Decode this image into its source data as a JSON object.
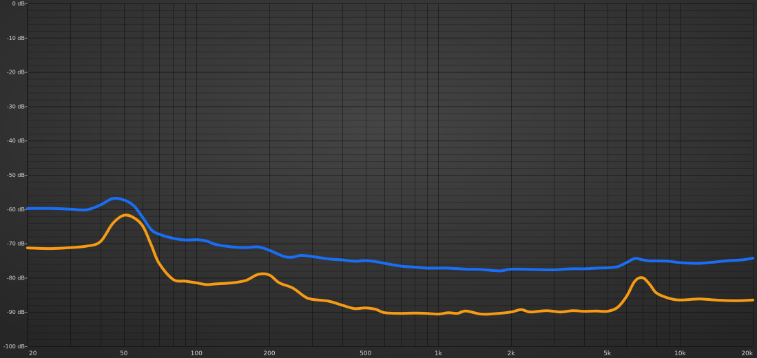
{
  "chart_data": {
    "type": "line",
    "xscale": "log",
    "xlim": [
      20,
      20000
    ],
    "ylim": [
      -100,
      0
    ],
    "grid": true,
    "y_ticks": [
      0,
      -10,
      -20,
      -30,
      -40,
      -50,
      -60,
      -70,
      -80,
      -90,
      -100
    ],
    "y_tick_labels": [
      "0 dB",
      "-10 dB",
      "-20 dB",
      "-30 dB",
      "-40 dB",
      "-50 dB",
      "-60 dB",
      "-70 dB",
      "-80 dB",
      "-90 dB",
      "-100 dB"
    ],
    "x_ticks": [
      20,
      50,
      100,
      200,
      500,
      1000,
      2000,
      5000,
      10000,
      20000
    ],
    "x_tick_labels": [
      "20",
      "50",
      "100",
      "200",
      "500",
      "1k",
      "2k",
      "5k",
      "10k",
      "20k"
    ],
    "series": [
      {
        "color": "#1a6ef5",
        "x": [
          20,
          25,
          30,
          35,
          40,
          45,
          50,
          55,
          60,
          65,
          70,
          80,
          90,
          100,
          110,
          120,
          140,
          160,
          180,
          200,
          230,
          250,
          270,
          300,
          350,
          400,
          450,
          500,
          550,
          600,
          700,
          800,
          900,
          1000,
          1100,
          1300,
          1500,
          1800,
          2000,
          2500,
          3000,
          3500,
          4000,
          4500,
          5000,
          5500,
          6000,
          6500,
          7000,
          7500,
          8000,
          9000,
          10000,
          12000,
          14000,
          16000,
          18000,
          20000
        ],
        "y": [
          -59.8,
          -59.8,
          -60.0,
          -60.2,
          -58.8,
          -56.9,
          -57.3,
          -59.0,
          -62.5,
          -66.0,
          -67.3,
          -68.5,
          -69.0,
          -68.9,
          -69.3,
          -70.3,
          -71.0,
          -71.2,
          -71.0,
          -72.0,
          -73.8,
          -74.0,
          -73.5,
          -73.8,
          -74.5,
          -74.8,
          -75.2,
          -75.0,
          -75.3,
          -75.8,
          -76.6,
          -76.9,
          -77.2,
          -77.2,
          -77.2,
          -77.5,
          -77.6,
          -78.0,
          -77.5,
          -77.6,
          -77.7,
          -77.4,
          -77.4,
          -77.2,
          -77.1,
          -76.8,
          -75.6,
          -74.4,
          -74.8,
          -75.1,
          -75.1,
          -75.2,
          -75.6,
          -75.8,
          -75.4,
          -75.0,
          -74.8,
          -74.3
        ]
      },
      {
        "color": "#f59b14",
        "x": [
          20,
          25,
          30,
          35,
          40,
          45,
          50,
          55,
          60,
          65,
          70,
          80,
          90,
          100,
          110,
          120,
          140,
          160,
          180,
          200,
          220,
          250,
          280,
          300,
          350,
          400,
          450,
          500,
          550,
          600,
          700,
          800,
          900,
          1000,
          1100,
          1200,
          1300,
          1500,
          1700,
          2000,
          2200,
          2400,
          2800,
          3200,
          3600,
          4000,
          4500,
          5000,
          5500,
          6000,
          6500,
          7000,
          7500,
          8000,
          9000,
          10000,
          12000,
          14000,
          17000,
          20000
        ],
        "y": [
          -71.3,
          -71.5,
          -71.2,
          -70.8,
          -69.5,
          -64.2,
          -61.8,
          -62.5,
          -65.0,
          -70.5,
          -75.8,
          -80.5,
          -81.0,
          -81.5,
          -82.0,
          -81.8,
          -81.5,
          -80.8,
          -79.0,
          -79.2,
          -81.5,
          -83.0,
          -85.5,
          -86.3,
          -86.8,
          -88.0,
          -89.0,
          -88.8,
          -89.2,
          -90.2,
          -90.4,
          -90.3,
          -90.4,
          -90.6,
          -90.2,
          -90.4,
          -89.7,
          -90.6,
          -90.5,
          -90.0,
          -89.3,
          -90.0,
          -89.6,
          -90.0,
          -89.6,
          -89.8,
          -89.7,
          -89.8,
          -88.7,
          -85.5,
          -81.0,
          -80.0,
          -82.0,
          -84.5,
          -86.0,
          -86.5,
          -86.2,
          -86.5,
          -86.7,
          -86.5
        ]
      }
    ]
  }
}
